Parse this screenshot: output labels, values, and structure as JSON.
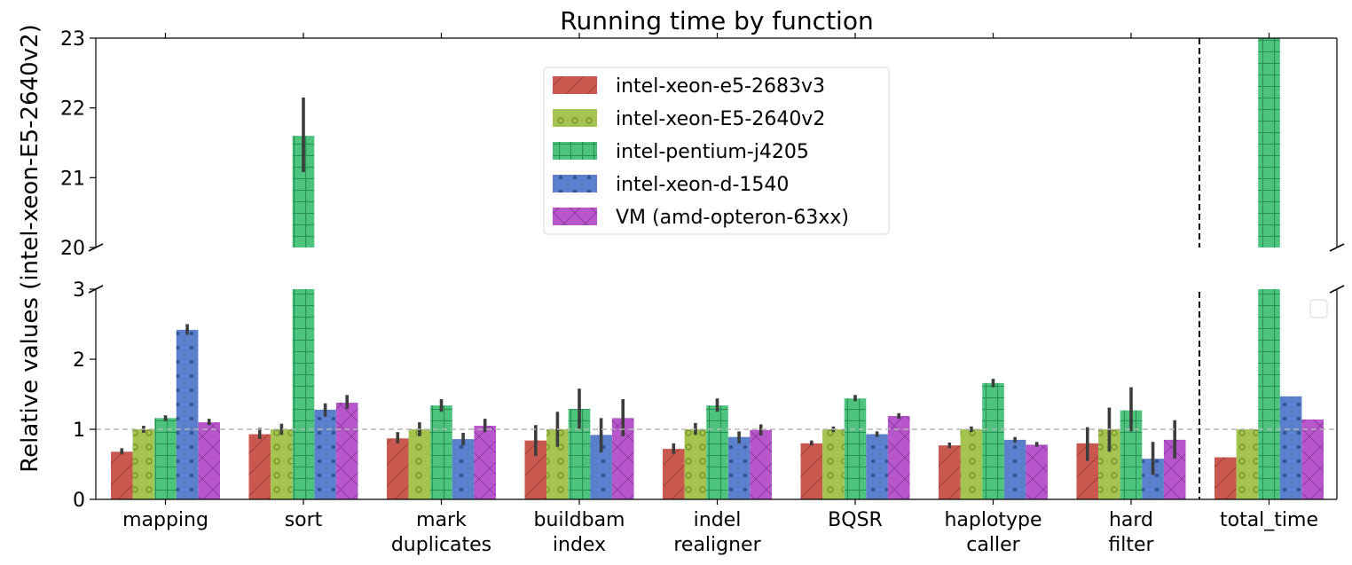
{
  "chart_data": {
    "type": "bar",
    "title": "Running time by function",
    "xlabel": "",
    "ylabel": "Relative values (intel-xeon-E5-2640v2)",
    "broken_axis": true,
    "ylim_lower": [
      0,
      3
    ],
    "ylim_upper": [
      20,
      23
    ],
    "yticks_lower": [
      "0",
      "1",
      "2",
      "3"
    ],
    "yticks_upper": [
      "20",
      "21",
      "22",
      "23"
    ],
    "reference_line": 1,
    "legend_position": "upper center",
    "categories": [
      [
        "mapping"
      ],
      [
        "sort"
      ],
      [
        "mark",
        "duplicates"
      ],
      [
        "buildbam",
        "index"
      ],
      [
        "indel",
        "realigner"
      ],
      [
        "BQSR"
      ],
      [
        "haplotype",
        "caller"
      ],
      [
        "hard",
        "filter"
      ],
      [
        "total_time"
      ]
    ],
    "series": [
      {
        "name": "intel-xeon-e5-2683v3",
        "color": "#c9584f",
        "pattern": "diag-slash",
        "values": [
          0.68,
          0.93,
          0.87,
          0.84,
          0.72,
          0.8,
          0.77,
          0.8,
          0.6
        ],
        "errors": [
          [
            0.64,
            0.73
          ],
          [
            0.86,
            1.02
          ],
          [
            0.8,
            0.96
          ],
          [
            0.62,
            1.06
          ],
          [
            0.65,
            0.8
          ],
          [
            0.77,
            0.84
          ],
          [
            0.73,
            0.81
          ],
          [
            0.55,
            1.03
          ],
          null
        ]
      },
      {
        "name": "intel-xeon-E5-2640v2",
        "color": "#a4c34f",
        "pattern": "circles",
        "values": [
          1.0,
          1.0,
          1.0,
          1.0,
          1.0,
          1.0,
          1.0,
          1.0,
          1.0
        ],
        "errors": [
          [
            0.95,
            1.05
          ],
          [
            0.92,
            1.08
          ],
          [
            0.9,
            1.1
          ],
          [
            0.75,
            1.25
          ],
          [
            0.92,
            1.09
          ],
          [
            0.96,
            1.04
          ],
          [
            0.96,
            1.04
          ],
          [
            0.68,
            1.31
          ],
          null
        ]
      },
      {
        "name": "intel-pentium-j4205",
        "color": "#4cc47e",
        "pattern": "grid",
        "values": [
          1.16,
          21.6,
          1.34,
          1.29,
          1.34,
          1.44,
          1.66,
          1.27,
          23.0
        ],
        "errors": [
          [
            1.12,
            1.2
          ],
          [
            21.08,
            22.15
          ],
          [
            1.25,
            1.43
          ],
          [
            1.0,
            1.58
          ],
          [
            1.25,
            1.44
          ],
          [
            1.4,
            1.49
          ],
          [
            1.6,
            1.72
          ],
          [
            0.97,
            1.6
          ],
          null
        ]
      },
      {
        "name": "intel-xeon-d-1540",
        "color": "#5a80cb",
        "pattern": "dots",
        "values": [
          2.42,
          1.28,
          0.86,
          0.92,
          0.89,
          0.93,
          0.85,
          0.58,
          1.47
        ],
        "errors": [
          [
            2.35,
            2.5
          ],
          [
            1.18,
            1.37
          ],
          [
            0.77,
            0.95
          ],
          [
            0.67,
            1.16
          ],
          [
            0.8,
            0.97
          ],
          [
            0.89,
            0.97
          ],
          [
            0.81,
            0.89
          ],
          [
            0.35,
            0.82
          ],
          null
        ]
      },
      {
        "name": "VM (amd-opteron-63xx)",
        "color": "#b857cc",
        "pattern": "crosshatch",
        "values": [
          1.1,
          1.38,
          1.05,
          1.16,
          0.99,
          1.19,
          0.78,
          0.85,
          1.14
        ],
        "errors": [
          [
            1.06,
            1.15
          ],
          [
            1.29,
            1.49
          ],
          [
            0.96,
            1.15
          ],
          [
            0.9,
            1.43
          ],
          [
            0.91,
            1.07
          ],
          [
            1.15,
            1.23
          ],
          [
            0.75,
            0.82
          ],
          [
            0.58,
            1.13
          ],
          null
        ]
      }
    ]
  }
}
